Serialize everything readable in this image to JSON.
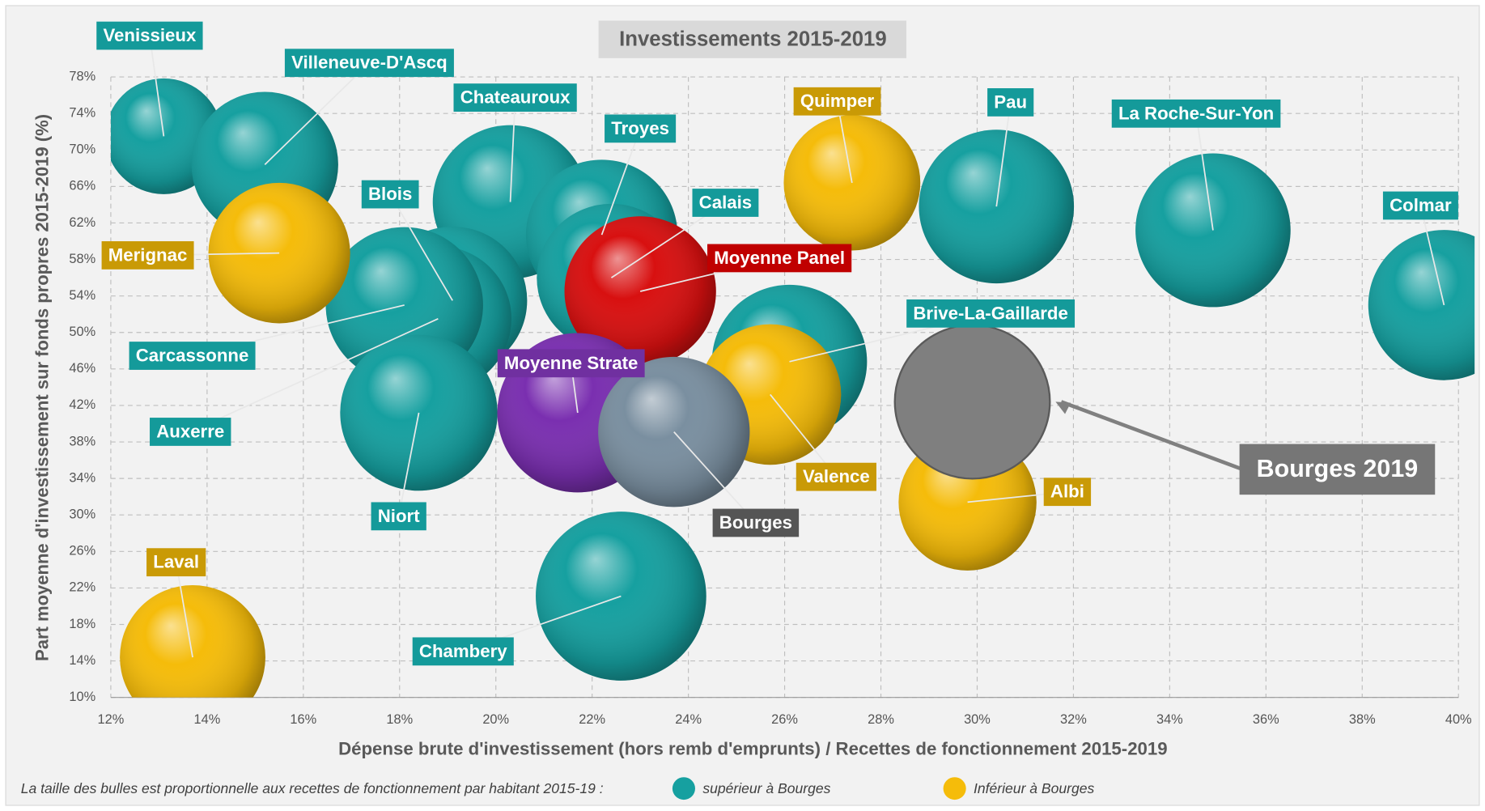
{
  "chart_data": {
    "type": "bubble",
    "title": "Investissements 2015-2019",
    "x_label": "Dépense brute d'investissement (hors remb d'emprunts) / Recettes de fonctionnement 2015-2019",
    "y_label": "Part moyenne d'investissement sur fonds propres 2015-2019 (%)",
    "legend_note": "La taille des bulles est proportionnelle aux recettes de fonctionnement par habitant 2015-19 :",
    "xlim": [
      12,
      40
    ],
    "ylim": [
      10,
      78
    ],
    "xticks": [
      {
        "value": 12,
        "label": "12%"
      },
      {
        "value": 14,
        "label": "14%"
      },
      {
        "value": 16,
        "label": "16%"
      },
      {
        "value": 18,
        "label": "18%"
      },
      {
        "value": 20,
        "label": "20%"
      },
      {
        "value": 22,
        "label": "22%"
      },
      {
        "value": 24,
        "label": "24%"
      },
      {
        "value": 26,
        "label": "26%"
      },
      {
        "value": 28,
        "label": "28%"
      },
      {
        "value": 30,
        "label": "30%"
      },
      {
        "value": 32,
        "label": "32%"
      },
      {
        "value": 34,
        "label": "34%"
      },
      {
        "value": 36,
        "label": "36%"
      },
      {
        "value": 38,
        "label": "38%"
      },
      {
        "value": 40,
        "label": "40%"
      }
    ],
    "yticks": [
      {
        "value": 10,
        "label": "10%"
      },
      {
        "value": 14,
        "label": "14%"
      },
      {
        "value": 18,
        "label": "18%"
      },
      {
        "value": 22,
        "label": "22%"
      },
      {
        "value": 26,
        "label": "26%"
      },
      {
        "value": 30,
        "label": "30%"
      },
      {
        "value": 34,
        "label": "34%"
      },
      {
        "value": 38,
        "label": "38%"
      },
      {
        "value": 42,
        "label": "42%"
      },
      {
        "value": 46,
        "label": "46%"
      },
      {
        "value": 50,
        "label": "50%"
      },
      {
        "value": 54,
        "label": "54%"
      },
      {
        "value": 58,
        "label": "58%"
      },
      {
        "value": 62,
        "label": "62%"
      },
      {
        "value": 66,
        "label": "66%"
      },
      {
        "value": 70,
        "label": "70%"
      },
      {
        "value": 74,
        "label": "74%"
      },
      {
        "value": 78,
        "label": "78%"
      }
    ],
    "grid": true,
    "series": [
      {
        "name": "supérieur à Bourges",
        "color": "#16a0a0",
        "label_color": "#149a9a",
        "shaded": true,
        "labels": [
          "Venissieux",
          "Villeneuve-D'Ascq",
          "Chateauroux",
          "Troyes",
          "Blois",
          "Auxerre",
          "Carcassonne",
          "Niort",
          "Calais",
          "Pau",
          "La Roche-Sur-Yon",
          "Colmar",
          "Brive-La-Gaillarde",
          "Chambery"
        ],
        "x": [
          13.1,
          15.2,
          20.3,
          22.2,
          19.1,
          18.8,
          18.1,
          18.4,
          22.4,
          30.4,
          34.9,
          39.7,
          26.1,
          22.6
        ],
        "values": [
          71.5,
          68.4,
          64.3,
          60.7,
          53.5,
          51.5,
          53,
          41.2,
          56,
          63.8,
          61.2,
          53,
          46.8,
          21.1
        ],
        "sizes": [
          38,
          60,
          67,
          64,
          62,
          60,
          69,
          69,
          62,
          67,
          67,
          64,
          67,
          81
        ]
      },
      {
        "name": "Inférieur à Bourges",
        "color": "#f5bc0a",
        "label_color": "#c99a06",
        "shaded": true,
        "labels": [
          "Merignac",
          "Quimper",
          "Valence",
          "Albi",
          "Laval"
        ],
        "x": [
          15.5,
          27.4,
          25.7,
          29.8,
          13.7
        ],
        "values": [
          58.7,
          66.4,
          43.2,
          31.4,
          14.4
        ],
        "sizes": [
          56,
          52,
          56,
          53,
          59
        ]
      },
      {
        "color": "#d81010",
        "label_color": "#c00000",
        "shaded": true,
        "labels": [
          "Moyenne Panel"
        ],
        "x": [
          23.0
        ],
        "values": [
          54.5
        ],
        "sizes": [
          64
        ]
      },
      {
        "color": "#7a2fb0",
        "label_color": "#7030a0",
        "shaded": true,
        "labels": [
          "Moyenne Strate"
        ],
        "x": [
          21.7
        ],
        "values": [
          41.2
        ],
        "sizes": [
          72
        ]
      },
      {
        "color": "#7a8fa0",
        "label_color": "#555555",
        "shaded": true,
        "labels": [
          "Bourges"
        ],
        "x": [
          23.7
        ],
        "values": [
          39.1
        ],
        "sizes": [
          64
        ]
      },
      {
        "color": "#7f7f7f",
        "label_color": "#767676",
        "shaded": false,
        "labels": [
          "Bourges 2019"
        ],
        "x": [
          29.9
        ],
        "values": [
          42.4
        ],
        "sizes": [
          67
        ]
      }
    ]
  }
}
